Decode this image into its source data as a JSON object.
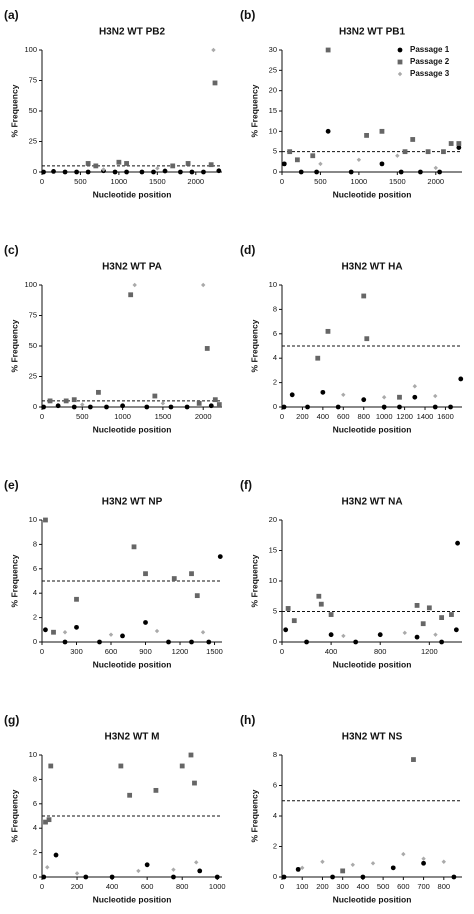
{
  "chart_data": [
    {
      "type": "scatter",
      "label": "(a)",
      "title": "H3N2 WT PB2",
      "xlabel": "Nucleotide position",
      "ylabel": "% Frequency",
      "xlim": [
        0,
        2341
      ],
      "xticks": [
        0,
        500,
        1000,
        1500,
        2000
      ],
      "ylim": [
        0,
        100
      ],
      "yticks": [
        0,
        25,
        50,
        75,
        100
      ],
      "threshold": 5,
      "series": [
        {
          "color": "#000000",
          "marker": "circle",
          "x": [
            20,
            150,
            300,
            450,
            600,
            800,
            950,
            1100,
            1300,
            1450,
            1600,
            1800,
            1950,
            2100,
            2300
          ],
          "values": [
            0,
            0.5,
            0,
            0,
            0,
            1,
            0,
            0,
            0,
            0,
            0.8,
            0,
            0,
            0,
            1
          ]
        },
        {
          "color": "#666666",
          "marker": "square",
          "x": [
            600,
            700,
            1000,
            1100,
            1700,
            1900,
            2200,
            2250
          ],
          "values": [
            7,
            5,
            8,
            7,
            5,
            7,
            6,
            73
          ]
        },
        {
          "color": "#aaaaaa",
          "marker": "diamond",
          "x": [
            800,
            1500,
            2230
          ],
          "values": [
            2,
            3,
            100
          ]
        }
      ]
    },
    {
      "type": "scatter",
      "label": "(b)",
      "title": "H3N2 WT PB1",
      "xlabel": "Nucleotide position",
      "ylabel": "% Frequency",
      "xlim": [
        0,
        2341
      ],
      "xticks": [
        0,
        500,
        1000,
        1500,
        2000
      ],
      "ylim": [
        0,
        30
      ],
      "yticks": [
        0,
        5,
        10,
        15,
        20,
        25,
        30
      ],
      "threshold": 5,
      "legend": "upper right",
      "series": [
        {
          "name": "Passage 1",
          "color": "#000000",
          "marker": "circle",
          "x": [
            30,
            250,
            450,
            600,
            900,
            1300,
            1550,
            1800,
            2050,
            2300
          ],
          "values": [
            2,
            0,
            0,
            10,
            0,
            2,
            0,
            0,
            0,
            6
          ]
        },
        {
          "name": "Passage 2",
          "color": "#666666",
          "marker": "square",
          "x": [
            100,
            200,
            400,
            600,
            1100,
            1300,
            1600,
            1700,
            1900,
            2100,
            2200,
            2300
          ],
          "values": [
            5,
            3,
            4,
            30,
            9,
            10,
            5,
            8,
            5,
            5,
            7,
            7
          ]
        },
        {
          "name": "Passage 3",
          "color": "#aaaaaa",
          "marker": "diamond",
          "x": [
            500,
            1000,
            1500,
            2000
          ],
          "values": [
            2,
            3,
            4,
            1
          ]
        }
      ]
    },
    {
      "type": "scatter",
      "label": "(c)",
      "title": "H3N2 WT PA",
      "xlabel": "Nucleotide position",
      "ylabel": "% Frequency",
      "xlim": [
        0,
        2233
      ],
      "xticks": [
        0,
        500,
        1000,
        1500,
        2000
      ],
      "ylim": [
        0,
        100
      ],
      "yticks": [
        0,
        25,
        50,
        75,
        100
      ],
      "threshold": 5,
      "series": [
        {
          "color": "#000000",
          "marker": "circle",
          "x": [
            20,
            200,
            400,
            600,
            800,
            1000,
            1300,
            1600,
            1800,
            2100
          ],
          "values": [
            0,
            1,
            0,
            0,
            0,
            1,
            0,
            0,
            0,
            1
          ]
        },
        {
          "color": "#666666",
          "marker": "square",
          "x": [
            100,
            300,
            400,
            700,
            1100,
            1400,
            1950,
            2050,
            2150,
            2200
          ],
          "values": [
            5,
            5,
            6,
            12,
            92,
            9,
            3,
            48,
            6,
            2
          ]
        },
        {
          "color": "#aaaaaa",
          "marker": "diamond",
          "x": [
            500,
            1150,
            1500,
            2000
          ],
          "values": [
            2,
            100,
            3,
            100
          ]
        }
      ]
    },
    {
      "type": "scatter",
      "label": "(d)",
      "title": "H3N2 WT HA",
      "xlabel": "Nucleotide position",
      "ylabel": "% Frequency",
      "xlim": [
        0,
        1762
      ],
      "xticks": [
        0,
        200,
        400,
        600,
        800,
        1000,
        1200,
        1400,
        1600
      ],
      "ylim": [
        0,
        10
      ],
      "yticks": [
        0,
        2,
        4,
        6,
        8,
        10
      ],
      "threshold": 5,
      "series": [
        {
          "color": "#000000",
          "marker": "circle",
          "x": [
            20,
            100,
            250,
            400,
            550,
            800,
            1000,
            1150,
            1300,
            1500,
            1650,
            1750
          ],
          "values": [
            0,
            1,
            0,
            1.2,
            0,
            0.6,
            0,
            0,
            0.8,
            0,
            0,
            2.3
          ]
        },
        {
          "color": "#666666",
          "marker": "square",
          "x": [
            350,
            450,
            800,
            830,
            1150
          ],
          "values": [
            4,
            6.2,
            9.1,
            5.6,
            0.8
          ]
        },
        {
          "color": "#aaaaaa",
          "marker": "diamond",
          "x": [
            600,
            1000,
            1300,
            1500
          ],
          "values": [
            1,
            0.8,
            1.7,
            0.9
          ]
        }
      ]
    },
    {
      "type": "scatter",
      "label": "(e)",
      "title": "H3N2 WT NP",
      "xlabel": "Nucleotide position",
      "ylabel": "% Frequency",
      "xlim": [
        0,
        1565
      ],
      "xticks": [
        0,
        300,
        600,
        900,
        1200,
        1500
      ],
      "ylim": [
        0,
        10
      ],
      "yticks": [
        0,
        2,
        4,
        6,
        8,
        10
      ],
      "threshold": 5,
      "series": [
        {
          "color": "#000000",
          "marker": "circle",
          "x": [
            30,
            200,
            300,
            500,
            700,
            900,
            1100,
            1300,
            1450,
            1550
          ],
          "values": [
            1,
            0,
            1.2,
            0,
            0.5,
            1.6,
            0,
            0,
            0,
            7
          ]
        },
        {
          "color": "#666666",
          "marker": "square",
          "x": [
            30,
            100,
            300,
            800,
            900,
            1150,
            1300,
            1350
          ],
          "values": [
            10,
            0.8,
            3.5,
            7.8,
            5.6,
            5.2,
            5.6,
            3.8
          ]
        },
        {
          "color": "#aaaaaa",
          "marker": "diamond",
          "x": [
            200,
            600,
            1000,
            1400
          ],
          "values": [
            0.8,
            0.6,
            0.9,
            0.8
          ]
        }
      ]
    },
    {
      "type": "scatter",
      "label": "(f)",
      "title": "H3N2 WT NA",
      "xlabel": "Nucleotide position",
      "ylabel": "% Frequency",
      "xlim": [
        0,
        1466
      ],
      "xticks": [
        0,
        400,
        800,
        1200
      ],
      "ylim": [
        0,
        20
      ],
      "yticks": [
        0,
        5,
        10,
        15,
        20
      ],
      "threshold": 5,
      "series": [
        {
          "color": "#000000",
          "marker": "circle",
          "x": [
            30,
            200,
            400,
            600,
            800,
            1100,
            1300,
            1420,
            1430
          ],
          "values": [
            2,
            0,
            1.2,
            0,
            1.2,
            0.8,
            0,
            2,
            16.2
          ]
        },
        {
          "color": "#666666",
          "marker": "square",
          "x": [
            50,
            100,
            300,
            320,
            400,
            1100,
            1150,
            1200,
            1300,
            1380
          ],
          "values": [
            5.5,
            3.5,
            7.5,
            6.2,
            4.5,
            6,
            3,
            5.6,
            4,
            4.5
          ]
        },
        {
          "color": "#aaaaaa",
          "marker": "diamond",
          "x": [
            500,
            1000,
            1250
          ],
          "values": [
            1,
            1.5,
            1.2
          ]
        }
      ]
    },
    {
      "type": "scatter",
      "label": "(g)",
      "title": "H3N2 WT M",
      "xlabel": "Nucleotide position",
      "ylabel": "% Frequency",
      "xlim": [
        0,
        1027
      ],
      "xticks": [
        0,
        200,
        400,
        600,
        800,
        1000
      ],
      "ylim": [
        0,
        10
      ],
      "yticks": [
        0,
        2,
        4,
        6,
        8,
        10
      ],
      "threshold": 5,
      "series": [
        {
          "color": "#000000",
          "marker": "circle",
          "x": [
            10,
            80,
            250,
            400,
            600,
            750,
            900,
            1000
          ],
          "values": [
            0,
            1.8,
            0,
            0,
            1,
            0,
            0.5,
            0
          ]
        },
        {
          "color": "#666666",
          "marker": "square",
          "x": [
            20,
            40,
            50,
            450,
            500,
            650,
            800,
            850,
            870
          ],
          "values": [
            4.5,
            4.7,
            9.1,
            9.1,
            6.7,
            7.1,
            9.1,
            10,
            7.7
          ]
        },
        {
          "color": "#aaaaaa",
          "marker": "diamond",
          "x": [
            30,
            200,
            550,
            750,
            880
          ],
          "values": [
            0.8,
            0.3,
            0.5,
            0.6,
            1.2
          ]
        }
      ]
    },
    {
      "type": "scatter",
      "label": "(h)",
      "title": "H3N2 WT NS",
      "xlabel": "Nucleotide position",
      "ylabel": "% Frequency",
      "xlim": [
        0,
        890
      ],
      "xticks": [
        0,
        100,
        200,
        300,
        400,
        500,
        600,
        700,
        800
      ],
      "ylim": [
        0,
        8
      ],
      "yticks": [
        0,
        2,
        4,
        6,
        8
      ],
      "threshold": 5,
      "series": [
        {
          "color": "#000000",
          "marker": "circle",
          "x": [
            10,
            80,
            250,
            400,
            550,
            700,
            850
          ],
          "values": [
            0,
            0.5,
            0,
            0,
            0.6,
            0.9,
            0
          ]
        },
        {
          "color": "#666666",
          "marker": "square",
          "x": [
            300,
            650
          ],
          "values": [
            0.4,
            7.7
          ]
        },
        {
          "color": "#aaaaaa",
          "marker": "diamond",
          "x": [
            100,
            200,
            350,
            450,
            600,
            700,
            800
          ],
          "values": [
            0.6,
            1,
            0.8,
            0.9,
            1.5,
            1.2,
            1
          ]
        }
      ]
    }
  ]
}
